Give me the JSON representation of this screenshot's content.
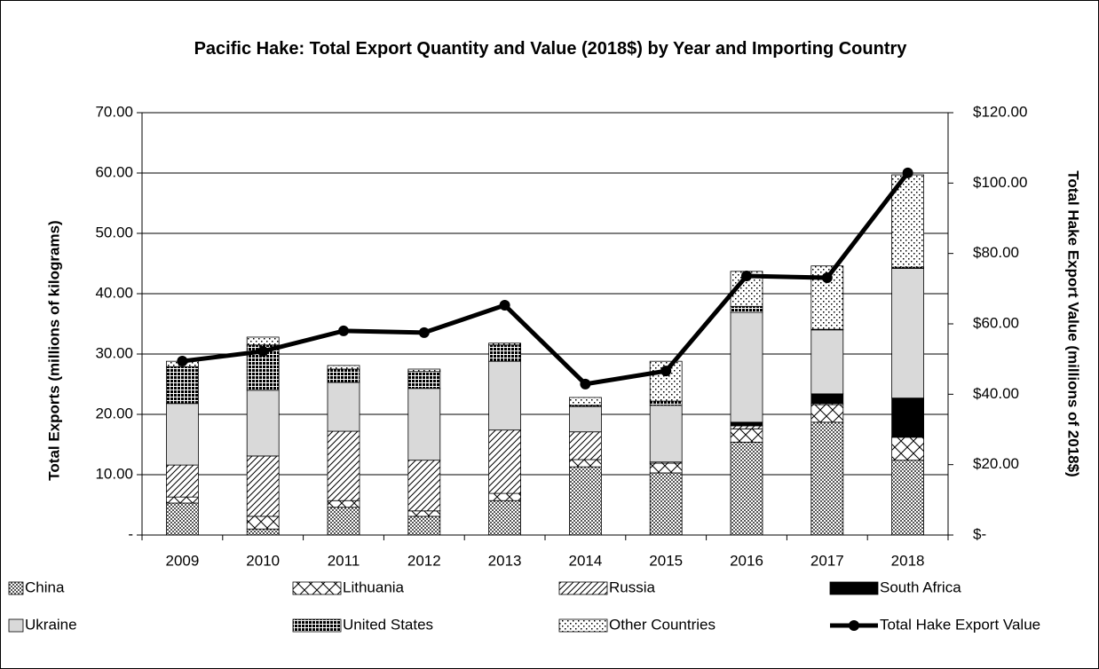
{
  "chart_data": {
    "type": "stacked-bar-line",
    "title": "Pacific Hake: Total Export Quantity and Value (2018$) by Year and Importing Country",
    "y_label": "Total Exports (millions of kilograms)",
    "y2_label": "Total Hake Export Value (millions of 2018$)",
    "categories": [
      "2009",
      "2010",
      "2011",
      "2012",
      "2013",
      "2014",
      "2015",
      "2016",
      "2017",
      "2018"
    ],
    "series": [
      {
        "name": "China",
        "color": "#808080",
        "values": [
          5.3,
          1.0,
          4.6,
          3.1,
          5.7,
          11.3,
          10.3,
          15.4,
          18.7,
          12.4
        ]
      },
      {
        "name": "Lithuania",
        "color": "#ffffff",
        "values": [
          1.0,
          2.1,
          1.1,
          0.9,
          1.2,
          1.2,
          1.6,
          2.2,
          2.9,
          3.8
        ]
      },
      {
        "name": "Russia",
        "color": "#ffffff",
        "values": [
          5.3,
          10.0,
          11.5,
          8.4,
          10.5,
          4.6,
          0.2,
          0.5,
          0.2,
          0.1
        ]
      },
      {
        "name": "South Africa",
        "color": "#000000",
        "values": [
          0,
          0,
          0,
          0,
          0,
          0,
          0,
          0.6,
          1.6,
          6.4
        ]
      },
      {
        "name": "Ukraine",
        "color": "#d9d9d9",
        "values": [
          10.2,
          10.9,
          8.1,
          11.9,
          11.4,
          4.2,
          9.4,
          18.2,
          10.6,
          21.5
        ]
      },
      {
        "name": "United States",
        "color": "#000000",
        "values": [
          6.1,
          7.5,
          2.2,
          2.8,
          2.7,
          0.2,
          0.7,
          1.0,
          0.1,
          0.2
        ]
      },
      {
        "name": "Other Countries",
        "color": "#ffffff",
        "values": [
          0.9,
          1.3,
          0.6,
          0.4,
          0.3,
          1.3,
          6.6,
          5.8,
          10.5,
          15.3
        ]
      },
      {
        "name": "Total Hake Export Value",
        "color": "#000000",
        "axis": "y2",
        "values": [
          49.4,
          52.2,
          58.0,
          57.5,
          65.3,
          42.9,
          46.6,
          73.6,
          73.1,
          102.9
        ]
      }
    ],
    "ylim": [
      0,
      70
    ],
    "yticks": [
      {
        "value": 0,
        "label": "-"
      },
      {
        "value": 10,
        "label": "10.00"
      },
      {
        "value": 20,
        "label": "20.00"
      },
      {
        "value": 30,
        "label": "30.00"
      },
      {
        "value": 40,
        "label": "40.00"
      },
      {
        "value": 50,
        "label": "50.00"
      },
      {
        "value": 60,
        "label": "60.00"
      },
      {
        "value": 70,
        "label": "70.00"
      }
    ],
    "y2lim": [
      0,
      120
    ],
    "y2ticks": [
      {
        "value": 0,
        "label": "$-"
      },
      {
        "value": 20,
        "label": "$20.00"
      },
      {
        "value": 40,
        "label": "$40.00"
      },
      {
        "value": 60,
        "label": "$60.00"
      },
      {
        "value": 80,
        "label": "$80.00"
      },
      {
        "value": 100,
        "label": "$100.00"
      },
      {
        "value": 120,
        "label": "$120.00"
      }
    ],
    "grid": true,
    "legend": "bottom"
  }
}
